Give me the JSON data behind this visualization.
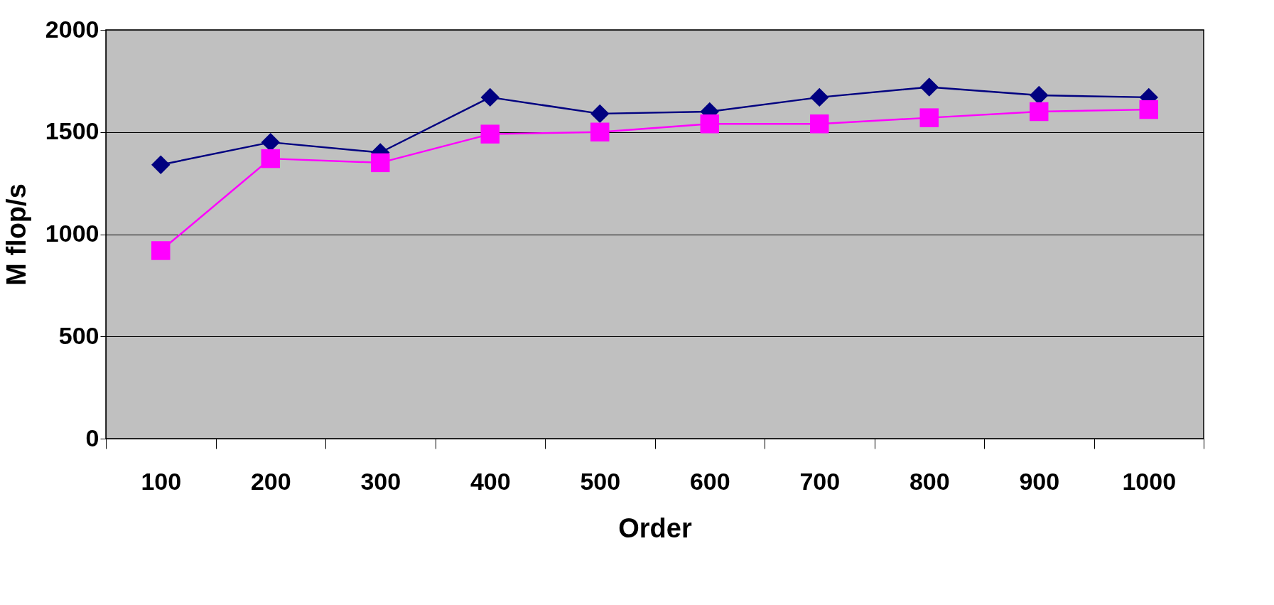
{
  "chart_data": {
    "type": "line",
    "xlabel": "Order",
    "ylabel": "M flop/s",
    "categories": [
      "100",
      "200",
      "300",
      "400",
      "500",
      "600",
      "700",
      "800",
      "900",
      "1000"
    ],
    "ylim": [
      0,
      2000
    ],
    "yticks": [
      0,
      500,
      1000,
      1500,
      2000
    ],
    "grid": "y",
    "series": [
      {
        "color": "#000080",
        "marker": "diamond",
        "values": [
          1340,
          1450,
          1400,
          1670,
          1590,
          1600,
          1670,
          1720,
          1680,
          1670
        ]
      },
      {
        "color": "#ff00ff",
        "marker": "square",
        "values": [
          920,
          1370,
          1350,
          1490,
          1500,
          1540,
          1540,
          1570,
          1600,
          1610
        ]
      }
    ]
  }
}
